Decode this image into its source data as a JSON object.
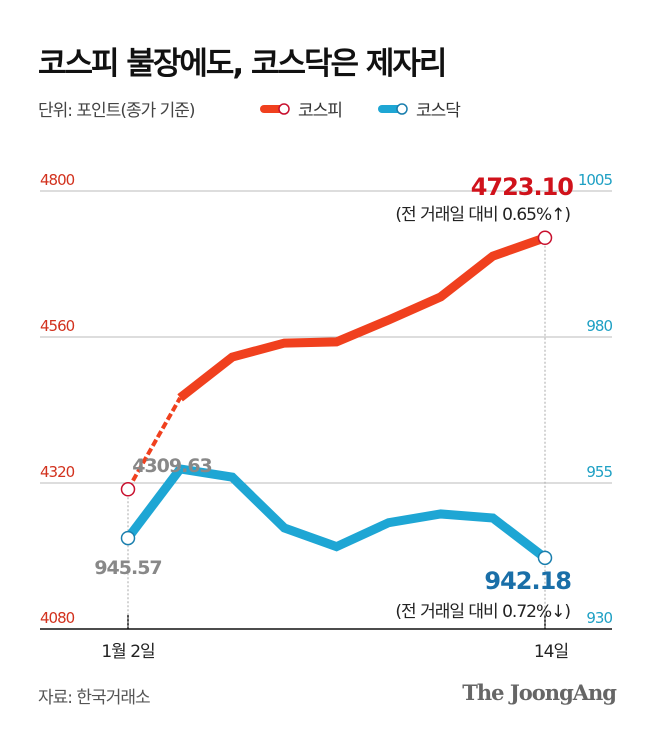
{
  "header": {
    "title": "코스피 불장에도, 코스닥은 제자리",
    "unit": "단위: 포인트(종가 기준)"
  },
  "legend": [
    {
      "name": "코스피",
      "color": "#f0401e"
    },
    {
      "name": "코스닥",
      "color": "#1ea6d4"
    }
  ],
  "footer": {
    "source": "자료: 한국거래소",
    "logo": "The JoongAng"
  },
  "chart_data": {
    "type": "line",
    "x_tick_labels": [
      "1월 2일",
      "14일"
    ],
    "left_axis": {
      "ticks": [
        4080,
        4320,
        4560,
        4800
      ],
      "range": [
        4080,
        4800
      ],
      "color": "#d2321e"
    },
    "right_axis": {
      "ticks": [
        930,
        955,
        980,
        1005
      ],
      "range": [
        930,
        1005
      ],
      "color": "#1ea0c4"
    },
    "grid": true,
    "series": [
      {
        "name": "코스피",
        "axis": "left",
        "color": "#f0401e",
        "values": [
          4309.63,
          4460,
          4527,
          4550,
          4552,
          4588,
          4626,
          4693,
          4723.1
        ]
      },
      {
        "name": "코스닥",
        "axis": "right",
        "color": "#1ea6d4",
        "values": [
          945.57,
          957.4,
          956.0,
          947.3,
          944.1,
          948.2,
          949.7,
          949.0,
          942.18
        ]
      }
    ],
    "annotations": {
      "kospi_start": "4309.63",
      "kosdaq_start": "945.57",
      "kospi_end": "4723.10",
      "kospi_change": "(전 거래일 대비 0.65%↑)",
      "kosdaq_end": "942.18",
      "kosdaq_change": "(전 거래일 대비 0.72%↓)"
    }
  }
}
